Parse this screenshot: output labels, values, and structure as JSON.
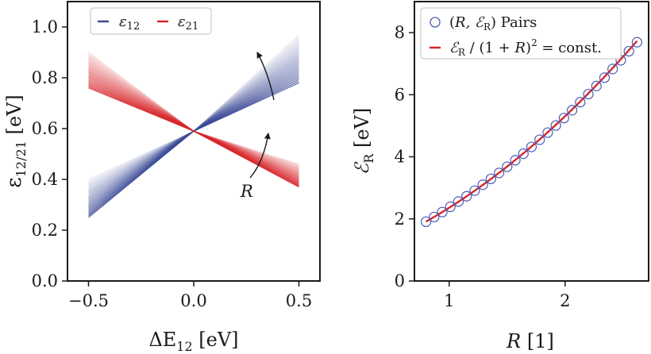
{
  "chart_data": [
    {
      "type": "line",
      "xlabel": "ΔE",
      "xlabel_sub": "12",
      "xlabel_unit": " [eV]",
      "ylabel": "ε",
      "ylabel_sub": "12/21",
      "ylabel_unit": " [eV]",
      "xlim": [
        -0.6,
        0.6
      ],
      "ylim": [
        0.0,
        1.1
      ],
      "xticks": [
        -0.5,
        0.0,
        0.5
      ],
      "xtick_labels": [
        "−0.5",
        "0.0",
        "0.5"
      ],
      "yticks": [
        0.0,
        0.2,
        0.4,
        0.6,
        0.8,
        1.0
      ],
      "ytick_labels": [
        "0.0",
        "0.2",
        "0.4",
        "0.6",
        "0.8",
        "1.0"
      ],
      "legend": {
        "placement": "top-left"
      },
      "series": [
        {
          "name": "ε",
          "name_sub": "12",
          "color": "#3b4a96",
          "pivot": [
            0.0,
            0.59
          ],
          "x": [
            -0.5,
            0.5
          ],
          "bundle_lines": 28,
          "y_left_range": [
            0.25,
            0.4
          ],
          "y_right_range": [
            0.78,
            0.97
          ]
        },
        {
          "name": "ε",
          "name_sub": "21",
          "color": "#d7262b",
          "pivot": [
            0.0,
            0.59
          ],
          "x": [
            -0.5,
            0.5
          ],
          "bundle_lines": 28,
          "y_left_range": [
            0.76,
            0.9
          ],
          "y_right_range": [
            0.37,
            0.46
          ]
        }
      ],
      "annotation": {
        "text": "R"
      }
    },
    {
      "type": "scatter",
      "xlabel": "R",
      "xlabel_unit": " [1]",
      "ylabel": "ℰ",
      "ylabel_sub": "R",
      "ylabel_unit": " [eV]",
      "xlim": [
        0.7,
        2.72
      ],
      "ylim": [
        0.0,
        9.0
      ],
      "xticks": [
        1,
        2
      ],
      "xtick_labels": [
        "1",
        "2"
      ],
      "yticks": [
        0,
        2,
        4,
        6,
        8
      ],
      "ytick_labels": [
        "0",
        "2",
        "4",
        "6",
        "8"
      ],
      "legend": {
        "placement": "top-left"
      },
      "series": [
        {
          "name": "(R, ℰR) Pairs",
          "name_parts": [
            "(",
            "R",
            ", ℰ",
            "R",
            ") Pairs"
          ],
          "kind": "markers",
          "color": "#4a5ab4",
          "x": [
            0.8,
            0.87,
            0.94,
            1.01,
            1.08,
            1.15,
            1.22,
            1.29,
            1.36,
            1.43,
            1.5,
            1.57,
            1.64,
            1.71,
            1.78,
            1.85,
            1.92,
            1.99,
            2.06,
            2.13,
            2.2,
            2.27,
            2.34,
            2.41,
            2.48,
            2.55,
            2.62
          ],
          "y": [
            1.91,
            2.06,
            2.22,
            2.39,
            2.56,
            2.73,
            2.91,
            3.1,
            3.29,
            3.48,
            3.68,
            3.89,
            4.1,
            4.32,
            4.55,
            4.78,
            5.01,
            5.25,
            5.5,
            5.76,
            6.02,
            6.28,
            6.55,
            6.83,
            7.11,
            7.4,
            7.69
          ]
        },
        {
          "name": "ℰR / (1 + R)² = const.",
          "name_parts": [
            "ℰ",
            "R",
            " / (1 + ",
            "R",
            ")",
            "2",
            " = const."
          ],
          "kind": "line",
          "color": "#d7262b",
          "x": [
            0.8,
            2.62
          ],
          "formula_const": 0.59
        }
      ]
    }
  ]
}
